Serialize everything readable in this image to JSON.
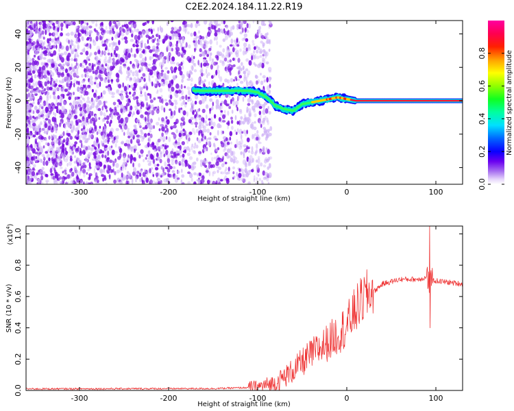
{
  "title": "C2E2.2024.184.11.22.R19",
  "colors": {
    "snr_line": "#ee3333",
    "speckle": "#7a10e0",
    "speckle_light": "#cdb0f6",
    "frame": "#000000"
  },
  "chart_data": [
    {
      "type": "heatmap",
      "name": "spectrogram",
      "xlabel": "Height of straight line (km)",
      "ylabel": "Frequency (Hz)",
      "xlim": [
        -360,
        130
      ],
      "ylim": [
        -50,
        48
      ],
      "xticks": [
        -300,
        -200,
        -100,
        0,
        100
      ],
      "yticks": [
        -40,
        -20,
        0,
        20,
        40
      ],
      "ridge": {
        "description": "dominant spectral peak vs height",
        "x": [
          -170,
          -150,
          -130,
          -110,
          -100,
          -90,
          -80,
          -70,
          -60,
          -50,
          -40,
          -30,
          -20,
          -10,
          0,
          10,
          50,
          90,
          130
        ],
        "y": [
          6,
          6,
          6,
          6,
          5,
          2,
          -3,
          -5,
          -6,
          -2,
          -1,
          0,
          1,
          2,
          1,
          0,
          0,
          0,
          0
        ]
      },
      "colorbar": {
        "label": "Normalized spectral amplitude",
        "range": [
          0.0,
          1.0
        ],
        "ticks": [
          "0.0",
          "0.2",
          "0.4",
          "0.6",
          "0.8"
        ],
        "tick_values": [
          0.0,
          0.2,
          0.4,
          0.6,
          0.8
        ]
      },
      "grid": false
    },
    {
      "type": "line",
      "name": "snr",
      "xlabel": "Height of straight line (km)",
      "ylabel": "SNR (10 * v/v)",
      "multiplier": "(x10",
      "multiplier_exp": "4",
      "multiplier_close": ")",
      "xlim": [
        -360,
        130
      ],
      "ylim": [
        0.0,
        1.05
      ],
      "xticks": [
        -300,
        -200,
        -100,
        0,
        100
      ],
      "yticks": [
        "0.0",
        "0.2",
        "0.4",
        "0.6",
        "0.8",
        "1.0"
      ],
      "ytick_values": [
        0.0,
        0.2,
        0.4,
        0.6,
        0.8,
        1.0
      ],
      "series": [
        {
          "trend_x": [
            -360,
            -150,
            -100,
            -80,
            -60,
            -40,
            -20,
            0,
            10,
            20,
            40,
            60,
            80,
            88,
            92,
            96,
            100,
            130
          ],
          "trend_y": [
            0.01,
            0.012,
            0.02,
            0.04,
            0.12,
            0.22,
            0.3,
            0.4,
            0.5,
            0.58,
            0.68,
            0.71,
            0.71,
            0.72,
            0.7,
            0.7,
            0.7,
            0.68
          ],
          "spike": {
            "x": 93,
            "max": 1.05,
            "min": 0.4
          }
        }
      ],
      "grid": false
    }
  ]
}
